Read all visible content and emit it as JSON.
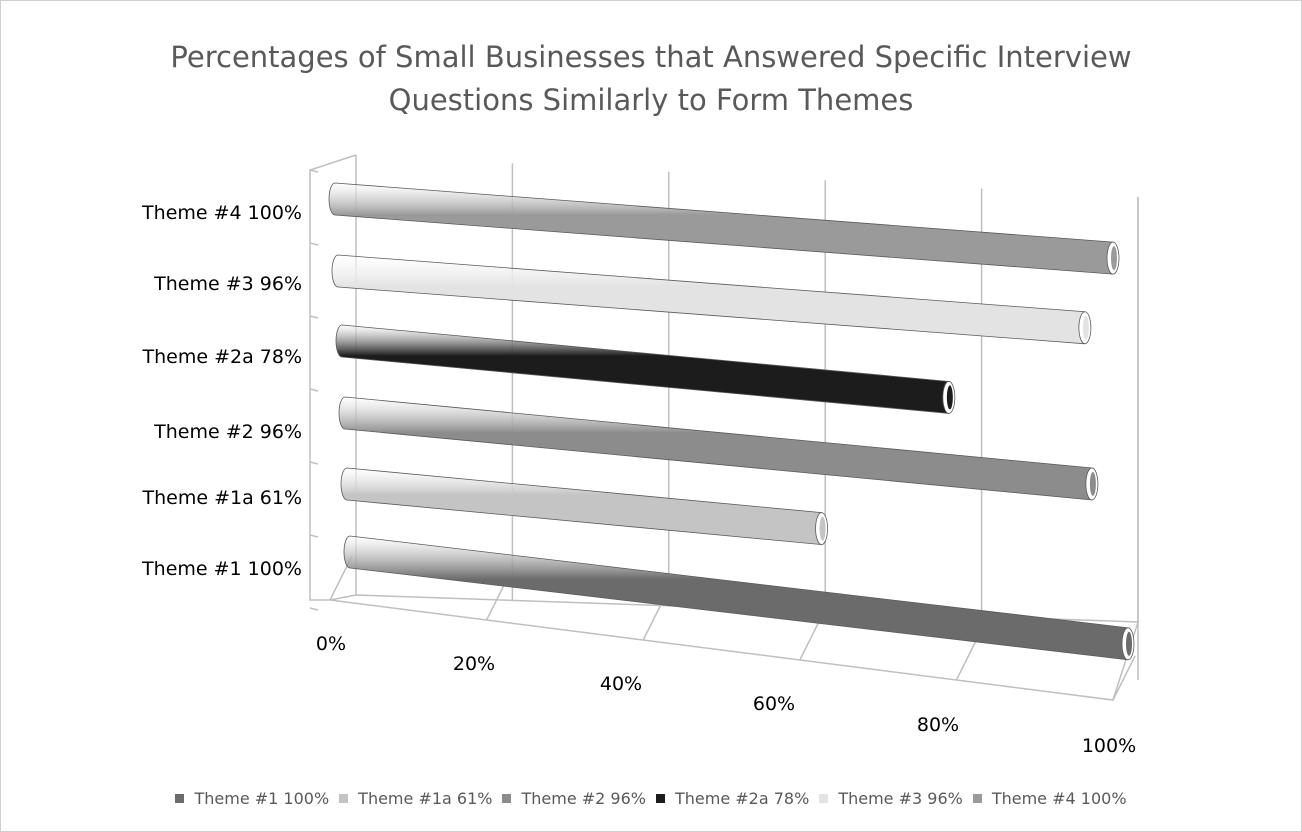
{
  "chart_data": {
    "type": "bar",
    "orientation": "horizontal",
    "style": "3d-cylinder",
    "title": "Percentages of Small Businesses that Answered Specific Interview Questions Similarly to Form Themes",
    "title_lines": [
      "Percentages of Small Businesses that Answered Specific Interview",
      "Questions Similarly to Form Themes"
    ],
    "categories": [
      "Theme #1 100%",
      "Theme #1a 61%",
      "Theme #2 96%",
      "Theme #2a 78%",
      "Theme #3 96%",
      "Theme #4 100%"
    ],
    "series": [
      {
        "name": "Theme #1 100%",
        "values": [
          1.0,
          0,
          0,
          0,
          0,
          0
        ],
        "color": "#6b6b6b"
      },
      {
        "name": "Theme #1a 61%",
        "values": [
          0,
          0.61,
          0,
          0,
          0,
          0
        ],
        "color": "#c4c4c4"
      },
      {
        "name": "Theme #2 96%",
        "values": [
          0,
          0,
          0.96,
          0,
          0,
          0
        ],
        "color": "#8c8c8c"
      },
      {
        "name": "Theme #2a 78%",
        "values": [
          0,
          0,
          0,
          0.78,
          0,
          0
        ],
        "color": "#1c1c1c"
      },
      {
        "name": "Theme #3 96%",
        "values": [
          0,
          0,
          0,
          0,
          0.96,
          0
        ],
        "color": "#e3e3e3"
      },
      {
        "name": "Theme #4 100%",
        "values": [
          0,
          0,
          0,
          0,
          0,
          1.0
        ],
        "color": "#9a9a9a"
      }
    ],
    "xticks": [
      "0%",
      "20%",
      "40%",
      "60%",
      "80%",
      "100%"
    ],
    "xlim": [
      0,
      1
    ],
    "grid": true,
    "legend": "bottom"
  }
}
